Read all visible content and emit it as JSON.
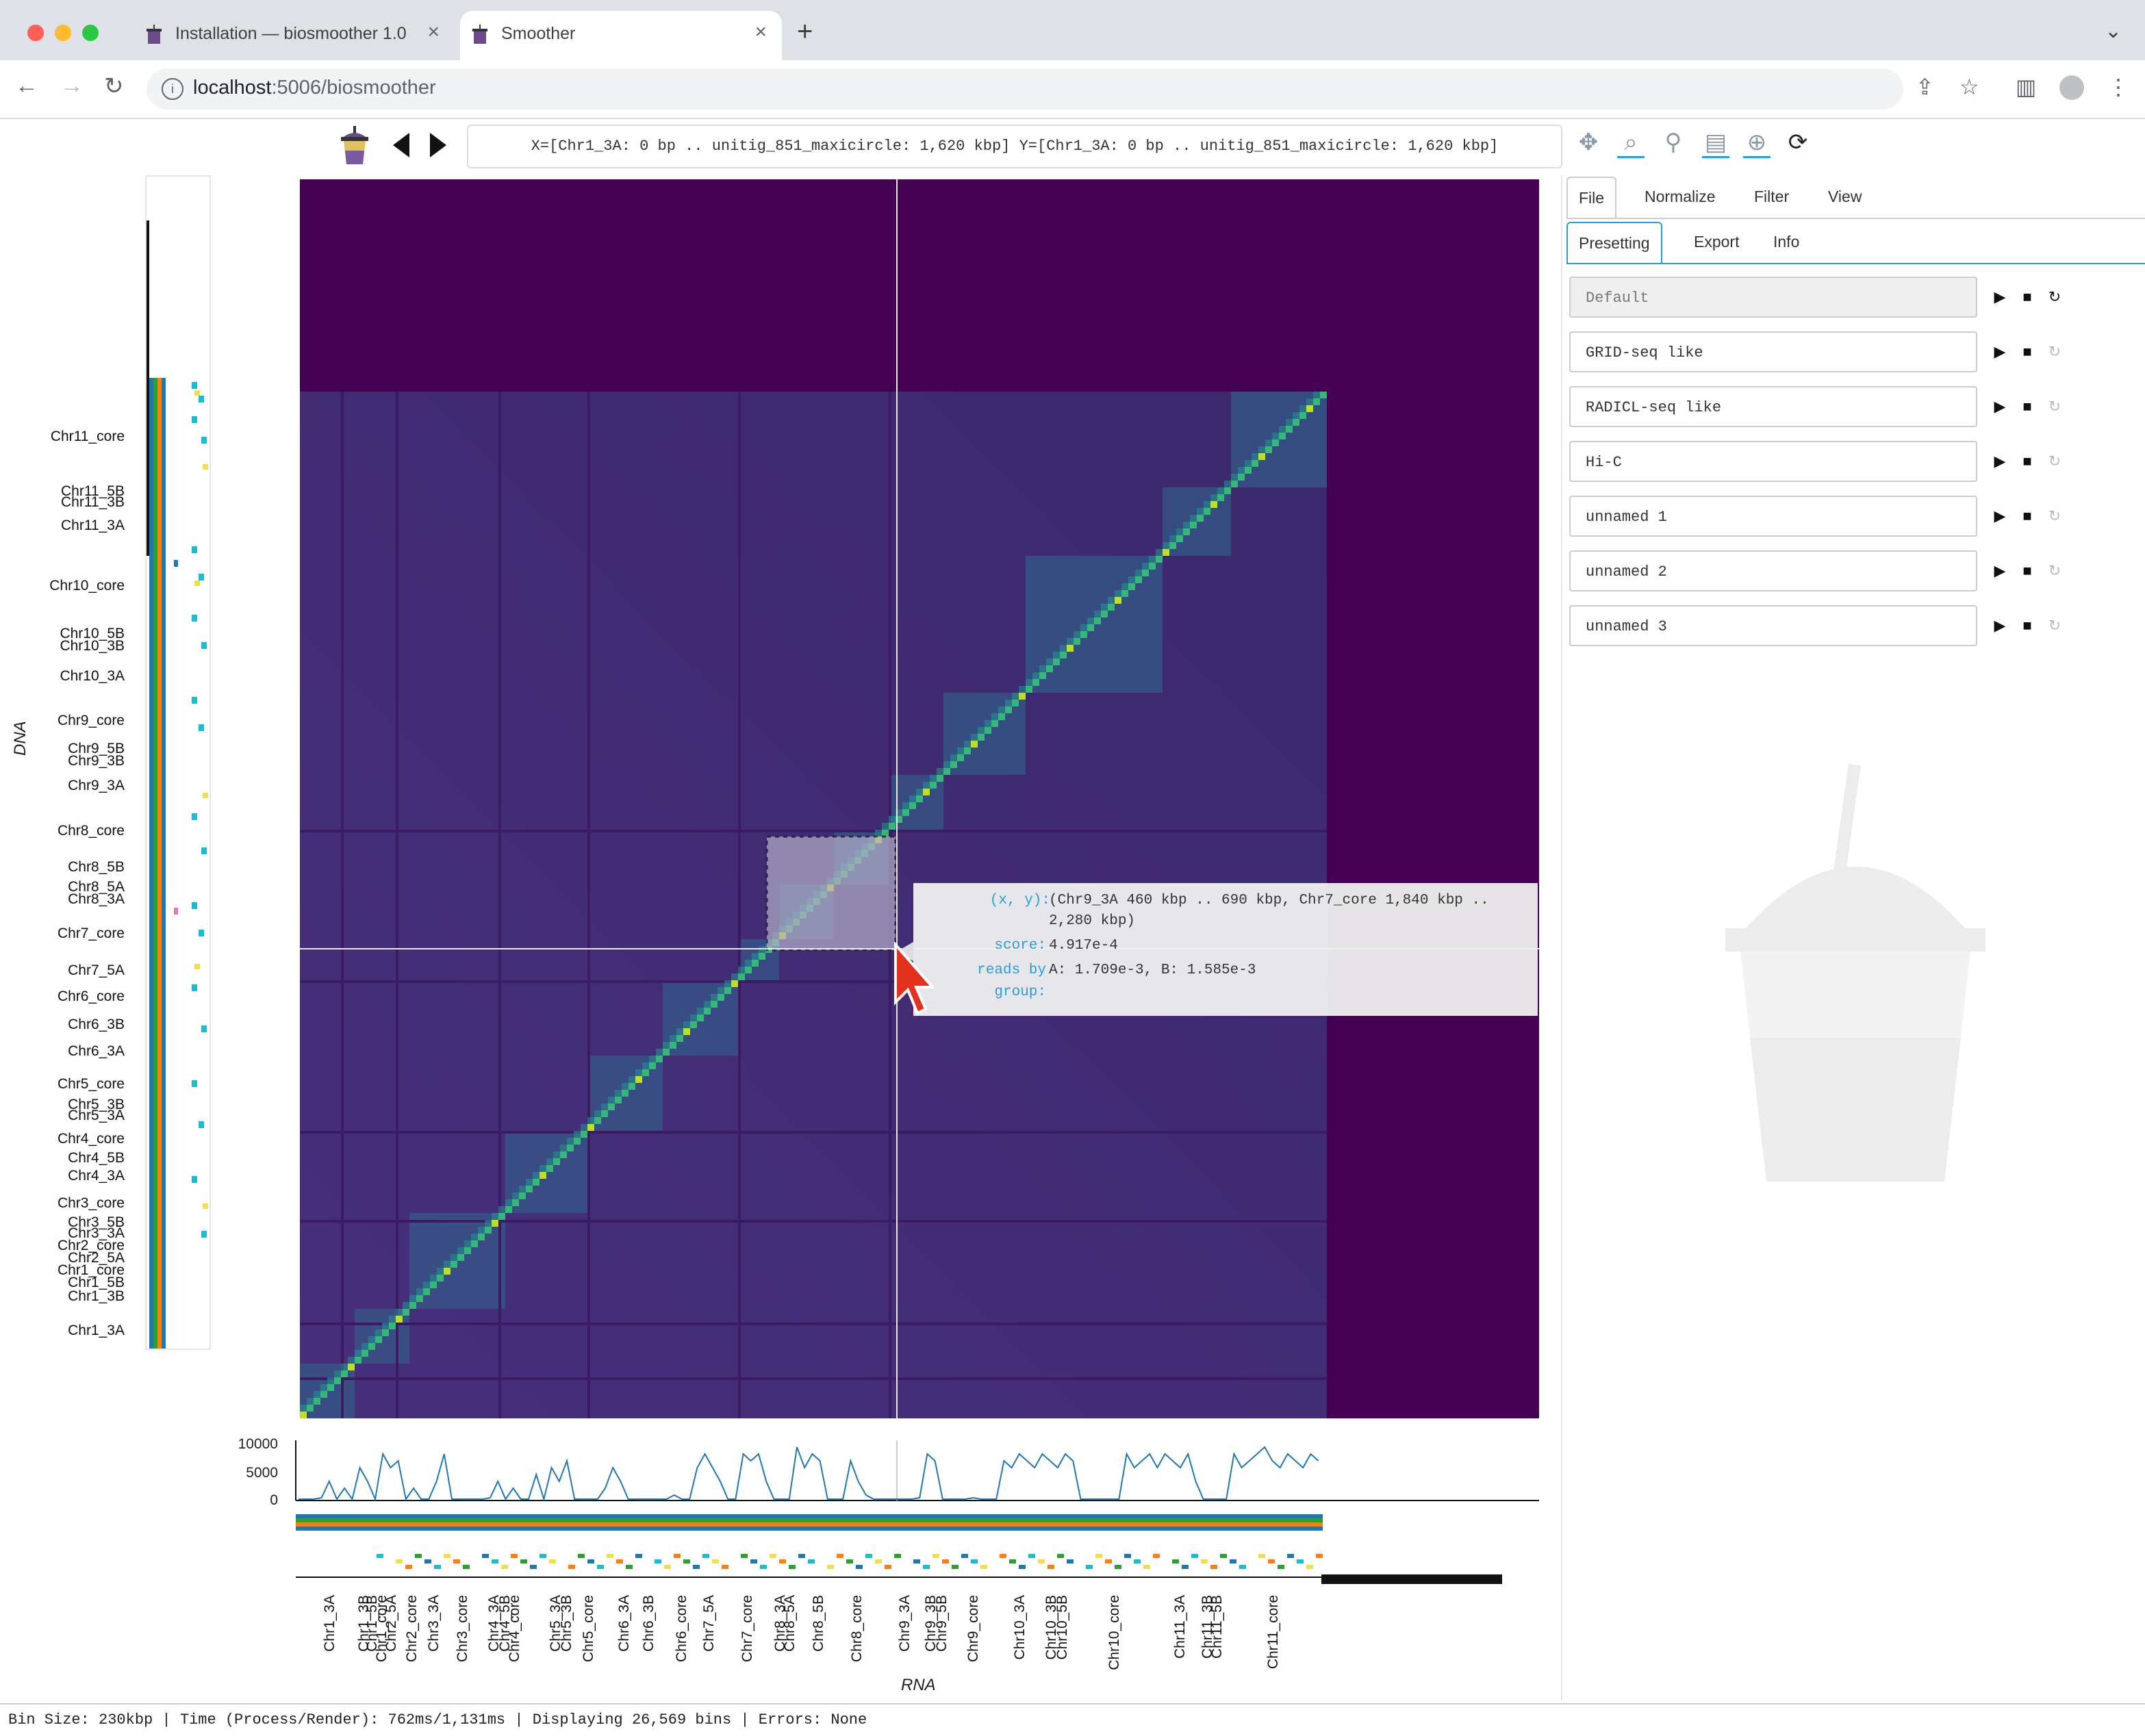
{
  "browser": {
    "tabs": [
      {
        "title": "Installation — biosmoother 1.0"
      },
      {
        "title": "Smoother"
      }
    ],
    "url_host": "localhost",
    "url_rest": ":5006/biosmoother"
  },
  "app_toolbar": {
    "coord_text": "X=[Chr1_3A: 0 bp .. unitig_851_maxicircle: 1,620 kbp] Y=[Chr1_3A: 0 bp .. unitig_851_maxicircle: 1,620 kbp]"
  },
  "left_axis": {
    "title": "DNA",
    "labels": [
      "Chr11_core",
      "Chr11_5B",
      "Chr11_3B",
      "Chr11_3A",
      "Chr10_core",
      "Chr10_5B",
      "Chr10_3B",
      "Chr10_3A",
      "Chr9_core",
      "Chr9_5B",
      "Chr9_3B",
      "Chr9_3A",
      "Chr8_core",
      "Chr8_5B",
      "Chr8_5A",
      "Chr8_3A",
      "Chr7_core",
      "Chr7_5A",
      "Chr6_core",
      "Chr6_3B",
      "Chr6_3A",
      "Chr5_core",
      "Chr5_3B",
      "Chr5_3A",
      "Chr4_core",
      "Chr4_5B",
      "Chr4_3A",
      "Chr3_core",
      "Chr3_5B",
      "Chr3_3A",
      "Chr2_core",
      "Chr2_5A",
      "Chr1_core",
      "Chr1_5B",
      "Chr1_3B",
      "Chr1_3A"
    ]
  },
  "bottom_axis": {
    "title": "RNA",
    "yticks": [
      "10000",
      "5000",
      "0"
    ],
    "labels": [
      "Chr1_3A",
      "Chr1_3B",
      "Chr1_5B",
      "Chr1_core",
      "Chr2_5A",
      "Chr2_core",
      "Chr3_3A",
      "Chr3_core",
      "Chr4_3A",
      "Chr4_5B",
      "Chr4_core",
      "Chr5_3A",
      "Chr5_3B",
      "Chr5_core",
      "Chr6_3A",
      "Chr6_3B",
      "Chr6_core",
      "Chr7_5A",
      "Chr7_core",
      "Chr8_3A",
      "Chr8_5A",
      "Chr8_5B",
      "Chr8_core",
      "Chr9_3A",
      "Chr9_3B",
      "Chr9_5B",
      "Chr9_core",
      "Chr10_3A",
      "Chr10_3B",
      "Chr10_5B",
      "Chr10_core",
      "Chr11_3A",
      "Chr11_3B",
      "Chr11_5B",
      "Chr11_core"
    ]
  },
  "tooltip": {
    "xy_key": "(x, y):",
    "xy_val": "(Chr9_3A 460 kbp .. 690 kbp, Chr7_core 1,840 kbp ..",
    "xy_val2": "2,280 kbp)",
    "score_key": "score:",
    "score_val": "4.917e-4",
    "reads_key": "reads by",
    "reads_val": "A: 1.709e-3, B: 1.585e-3",
    "group_key": "group:",
    "group_val": ""
  },
  "right_panel": {
    "main_tabs": [
      "File",
      "Normalize",
      "Filter",
      "View"
    ],
    "sub_tabs": [
      "Presetting",
      "Export",
      "Info"
    ],
    "presets": [
      "Default",
      "GRID-seq like",
      "RADICL-seq like",
      "Hi-C",
      "unnamed 1",
      "unnamed 2",
      "unnamed 3"
    ]
  },
  "status": {
    "text": "Bin Size: 230kbp | Time (Process/Render): 762ms/1,131ms | Displaying 26,569 bins | Errors: None"
  },
  "colors": {
    "heatmap_bg": "#440154",
    "tooltip_key": "#26a0da",
    "line_series": "#1f77b4"
  }
}
